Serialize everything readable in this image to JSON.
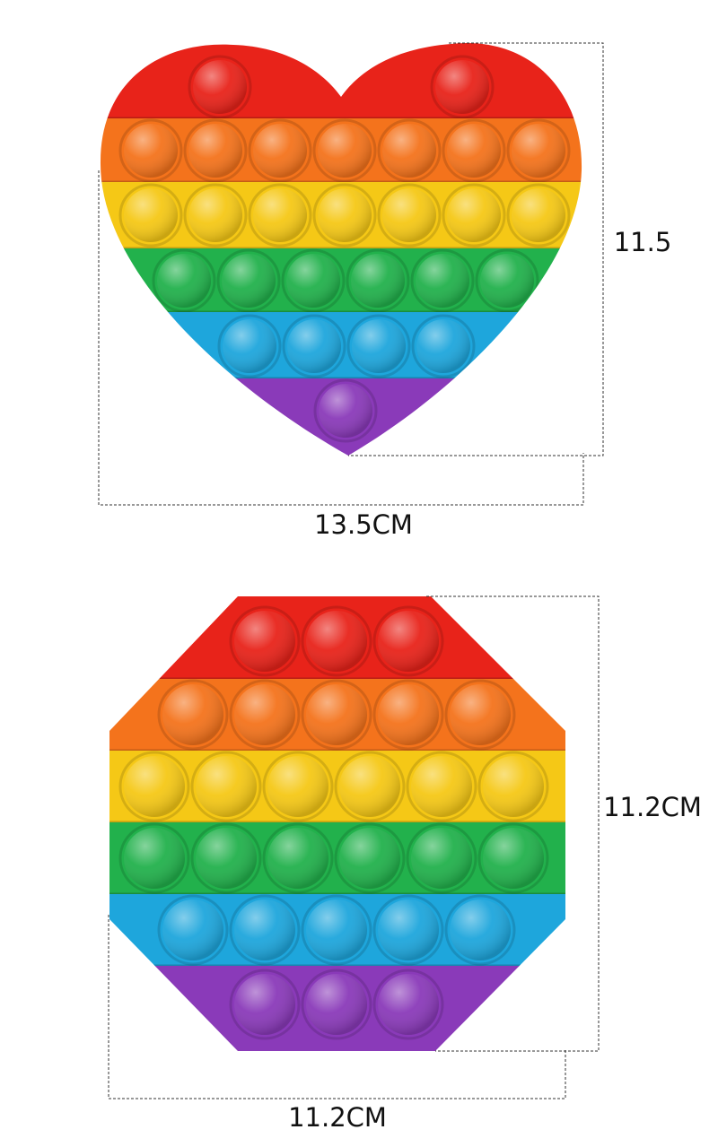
{
  "products": [
    {
      "height_label": "11.5",
      "width_label": "13.5CM"
    },
    {
      "height_label": "11.2CM",
      "width_label": "11.2CM"
    }
  ]
}
